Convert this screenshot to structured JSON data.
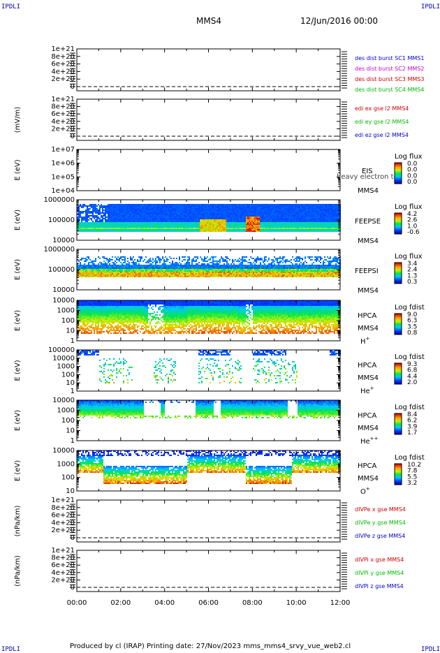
{
  "header": {
    "corner_left": "IPDLI",
    "corner_right": "IPDLI",
    "spacecraft": "MMS4",
    "date": "12/Jun/2016 00:00"
  },
  "footer": {
    "text": "Produced by cl (IRAP)   Printing date: 27/Nov/2023   mms_mms4_srvy_vue_web2.cl",
    "corner_left": "IPDLI",
    "corner_right": "IPDLI"
  },
  "chart_data": [
    {
      "type": "line",
      "ylabel": "",
      "yticks": [
        "1e+21",
        "8e+20",
        "6e+20",
        "4e+20",
        "2e+20",
        "0"
      ],
      "legend": [
        {
          "text": "des dist burst SC1 MMS1",
          "color": "#0000cc"
        },
        {
          "text": "des dist burst SC2 MMS2",
          "color": "#cc00cc"
        },
        {
          "text": "des dist burst SC3 MMS3",
          "color": "#cc0000"
        },
        {
          "text": "des dist burst SC4 MMS4",
          "color": "#00bb00"
        }
      ]
    },
    {
      "type": "line",
      "ylabel": "(mV/m)",
      "yticks": [
        "1e+21",
        "8e+20",
        "6e+20",
        "4e+20",
        "2e+20",
        "0"
      ],
      "legend": [
        {
          "text": "edi ex gse l2 MMS4",
          "color": "#cc0000"
        },
        {
          "text": "edi ey gse l2 MMS4",
          "color": "#00bb00"
        },
        {
          "text": "edi ez gse l2 MMS4",
          "color": "#0000cc"
        }
      ]
    },
    {
      "type": "heatmap",
      "ylabel": "E (eV)",
      "yticks": [
        "1e+07",
        "1e+06",
        "1e+05",
        "1e+04"
      ],
      "labels": [
        "EIS",
        "MMS4"
      ],
      "overlay": "heavy electron to",
      "cbar_title": "Log flux",
      "cbar_ticks": [
        "0.0",
        "0.0",
        "0.0",
        "0.0"
      ],
      "empty": true
    },
    {
      "type": "heatmap",
      "ylabel": "E (eV)",
      "yticks": [
        "1000000",
        "100000",
        "10000"
      ],
      "labels": [
        "FEEPSE",
        "MMS4"
      ],
      "cbar_title": "Log flux",
      "cbar_ticks": [
        "4.2",
        "2.6",
        "1.0",
        "-0.6"
      ]
    },
    {
      "type": "heatmap",
      "ylabel": "E (eV)",
      "yticks": [
        "1000000",
        "100000",
        "10000"
      ],
      "labels": [
        "FEEPSI",
        "MMS4"
      ],
      "cbar_title": "Log flux",
      "cbar_ticks": [
        "3.4",
        "2.4",
        "1.3",
        "0.3"
      ]
    },
    {
      "type": "heatmap",
      "ylabel": "E (eV)",
      "yticks": [
        "10000",
        "1000",
        "100",
        "10",
        "1"
      ],
      "labels": [
        "HPCA",
        "MMS4",
        "H+"
      ],
      "cbar_title": "Log fdist",
      "cbar_ticks": [
        "9.0",
        "6.3",
        "3.5",
        "0.8"
      ]
    },
    {
      "type": "heatmap",
      "ylabel": "E (eV)",
      "yticks": [
        "100000",
        "10000",
        "1000",
        "100",
        "10",
        "1"
      ],
      "labels": [
        "HPCA",
        "MMS4",
        "He+"
      ],
      "cbar_title": "Log fdist",
      "cbar_ticks": [
        "9.3",
        "6.8",
        "4.4",
        "2.0"
      ]
    },
    {
      "type": "heatmap",
      "ylabel": "E (eV)",
      "yticks": [
        "10000",
        "1000",
        "100",
        "10",
        "1"
      ],
      "labels": [
        "HPCA",
        "MMS4",
        "He++"
      ],
      "cbar_title": "Log fdist",
      "cbar_ticks": [
        "8.4",
        "6.2",
        "3.9",
        "1.7"
      ]
    },
    {
      "type": "heatmap",
      "ylabel": "E (eV)",
      "yticks": [
        "10000",
        "1000",
        "100",
        "10"
      ],
      "labels": [
        "HPCA",
        "MMS4",
        "O+"
      ],
      "cbar_title": "Log fdist",
      "cbar_ticks": [
        "10.2",
        "7.8",
        "5.5",
        "3.2"
      ]
    },
    {
      "type": "line",
      "ylabel": "(nPa/km)",
      "yticks": [
        "1e+21",
        "8e+20",
        "6e+20",
        "4e+20",
        "2e+20",
        "0"
      ],
      "legend": [
        {
          "text": "dIVPe x gse MMS4",
          "color": "#cc0000"
        },
        {
          "text": "dIVPe y gse MMS4",
          "color": "#00bb00"
        },
        {
          "text": "dIVPe z gse MMS4",
          "color": "#0000cc"
        }
      ]
    },
    {
      "type": "line",
      "ylabel": "(nPa/km)",
      "yticks": [
        "1e+21",
        "8e+20",
        "6e+20",
        "4e+20",
        "2e+20",
        "0"
      ],
      "legend": [
        {
          "text": "dIVPi x gse MMS4",
          "color": "#cc0000"
        },
        {
          "text": "dIVPi y gse MMS4",
          "color": "#00bb00"
        },
        {
          "text": "dIVPi z gse MMS4",
          "color": "#0000cc"
        }
      ]
    }
  ],
  "xaxis": {
    "ticks": [
      "00:00",
      "02:00",
      "04:00",
      "06:00",
      "08:00",
      "10:00",
      "12:00"
    ]
  }
}
